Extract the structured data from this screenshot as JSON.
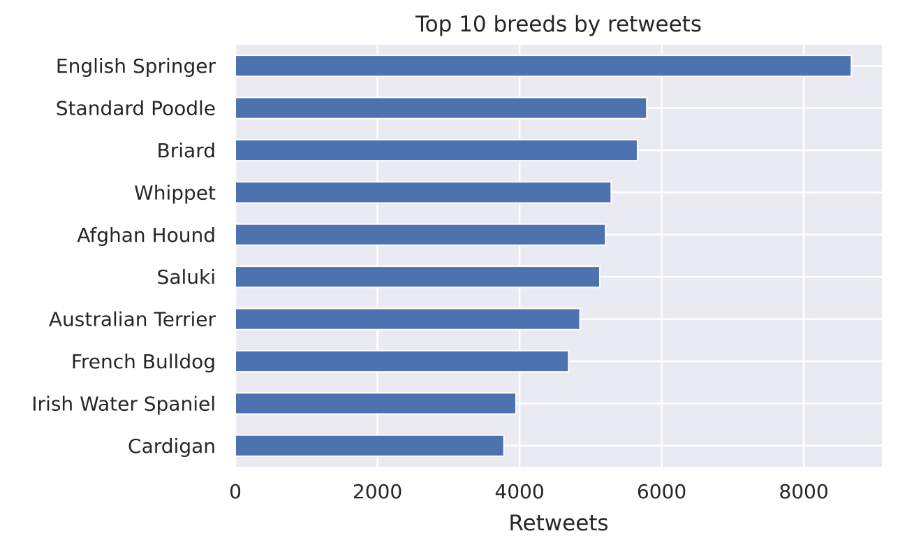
{
  "chart_data": {
    "type": "bar",
    "orientation": "horizontal",
    "title": "Top 10 breeds by retweets",
    "xlabel": "Retweets",
    "ylabel": "",
    "categories": [
      "English Springer",
      "Standard Poodle",
      "Briard",
      "Whippet",
      "Afghan Hound",
      "Saluki",
      "Australian Terrier",
      "French Bulldog",
      "Irish Water Spaniel",
      "Cardigan"
    ],
    "values": [
      8670,
      5790,
      5660,
      5290,
      5210,
      5130,
      4850,
      4690,
      3950,
      3780
    ],
    "xlim": [
      0,
      9100
    ],
    "xticks": [
      "0",
      "2000",
      "4000",
      "6000",
      "8000"
    ],
    "grid": true,
    "legend": "none",
    "colors": {
      "bar": "#4c72b0",
      "background": "#eaeaf2",
      "grid": "#ffffff",
      "text": "#262626"
    }
  }
}
